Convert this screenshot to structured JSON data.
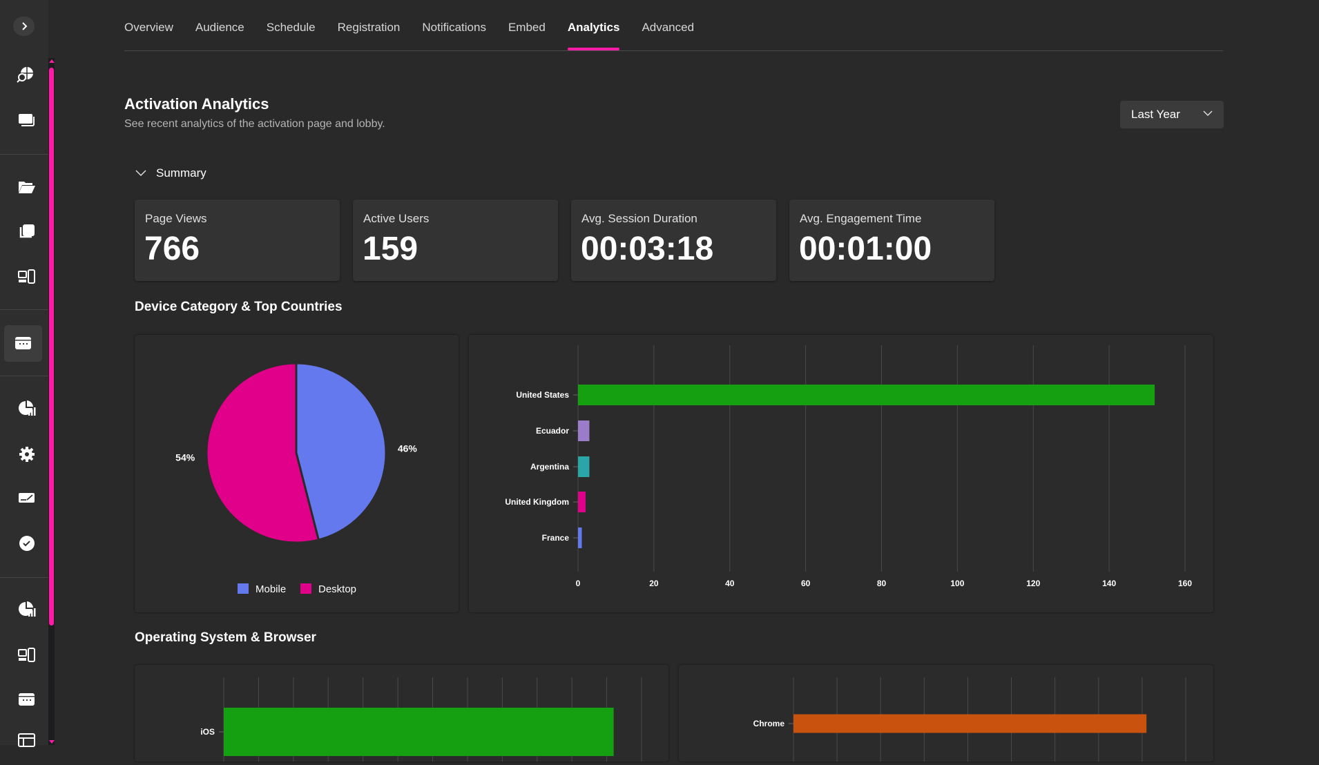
{
  "sidebar": {
    "expand_icon": "chevron-right-icon",
    "items": [
      {
        "icon": "globe-search-icon"
      },
      {
        "icon": "stacked-windows-icon"
      },
      {
        "icon": "folder-open-icon"
      },
      {
        "icon": "copy-pages-icon"
      },
      {
        "icon": "devices-icon"
      },
      {
        "icon": "calendar-icon",
        "active": true
      },
      {
        "icon": "pie-chart-analytics-icon"
      },
      {
        "icon": "gear-icon"
      },
      {
        "icon": "signature-icon"
      },
      {
        "icon": "check-circle-icon"
      },
      {
        "icon": "pie-chart-analytics-icon"
      },
      {
        "icon": "devices-icon"
      },
      {
        "icon": "calendar-icon"
      },
      {
        "icon": "table-icon"
      }
    ]
  },
  "tabs": [
    {
      "label": "Overview"
    },
    {
      "label": "Audience"
    },
    {
      "label": "Schedule"
    },
    {
      "label": "Registration"
    },
    {
      "label": "Notifications"
    },
    {
      "label": "Embed"
    },
    {
      "label": "Analytics",
      "active": true
    },
    {
      "label": "Advanced"
    }
  ],
  "accent": "#ff1aa8",
  "header": {
    "title": "Activation Analytics",
    "subtitle": "See recent analytics of the activation page and lobby.",
    "range": "Last Year"
  },
  "summary": {
    "label": "Summary",
    "cards": [
      {
        "label": "Page Views",
        "value": "766"
      },
      {
        "label": "Active Users",
        "value": "159"
      },
      {
        "label": "Avg. Session Duration",
        "value": "00:03:18"
      },
      {
        "label": "Avg. Engagement Time",
        "value": "00:01:00"
      }
    ]
  },
  "sections": {
    "device": "Device Category & Top Countries",
    "os": "Operating System & Browser"
  },
  "chart_data": [
    {
      "type": "pie",
      "slices": [
        {
          "name": "Mobile",
          "value": 46,
          "label": "46%",
          "color": "#6479ee"
        },
        {
          "name": "Desktop",
          "value": 54,
          "label": "54%",
          "color": "#e0008a"
        }
      ],
      "legend": "bottom"
    },
    {
      "type": "bar",
      "orientation": "horizontal",
      "categories": [
        "United States",
        "Ecuador",
        "Argentina",
        "United Kingdom",
        "France"
      ],
      "values": [
        152,
        3,
        3,
        2,
        1
      ],
      "colors": [
        "#14a010",
        "#9b7cc8",
        "#2aa5a8",
        "#e0008a",
        "#6479ee"
      ],
      "xlim": [
        0,
        160
      ],
      "xticks": [
        "0",
        "20",
        "40",
        "60",
        "80",
        "100",
        "120",
        "140",
        "160"
      ],
      "grid": true
    },
    {
      "type": "bar",
      "orientation": "horizontal",
      "categories": [
        "iOS"
      ],
      "values": [
        11.2
      ],
      "colors": [
        "#14a010"
      ],
      "xlim": [
        0,
        12
      ],
      "grid": true
    },
    {
      "type": "bar",
      "orientation": "horizontal",
      "categories": [
        "Chrome"
      ],
      "values": [
        8.1
      ],
      "colors": [
        "#c9520e"
      ],
      "xlim": [
        0,
        9
      ],
      "grid": true
    }
  ]
}
